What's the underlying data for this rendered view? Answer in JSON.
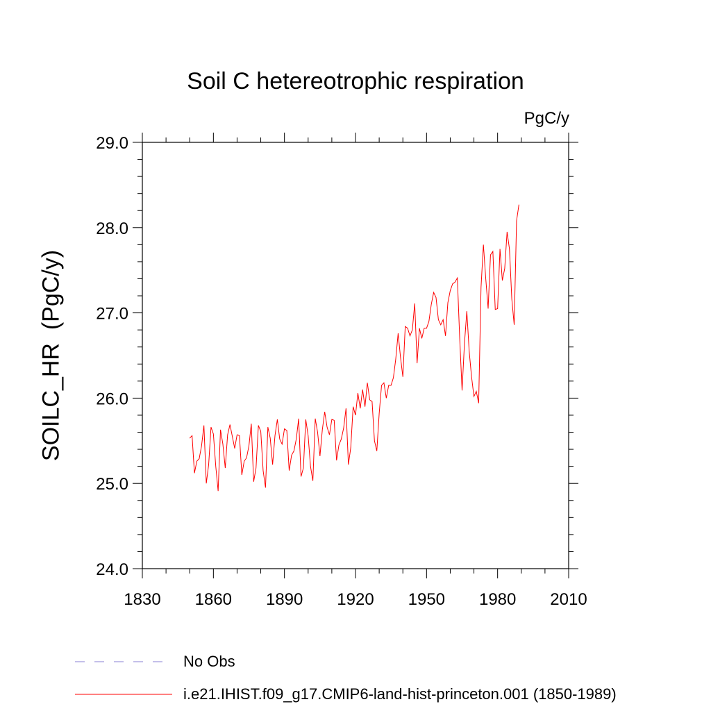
{
  "chart_data": {
    "type": "line",
    "title": "Soil C hetereotrophic respiration",
    "units": "PgC/y",
    "ylabel": "SOILC_HR  (PgC/y)",
    "xlabel": "",
    "xlim": [
      1830,
      2010
    ],
    "ylim": [
      24.0,
      29.0
    ],
    "x_ticks": [
      1830,
      1860,
      1890,
      1920,
      1950,
      1980,
      2010
    ],
    "x_tick_labels": [
      "1830",
      "1860",
      "1890",
      "1920",
      "1950",
      "1980",
      "2010"
    ],
    "y_ticks": [
      24.0,
      25.0,
      26.0,
      27.0,
      28.0,
      29.0
    ],
    "y_tick_labels": [
      "24.0",
      "25.0",
      "26.0",
      "27.0",
      "28.0",
      "29.0"
    ],
    "grid": false,
    "legend_position": "bottom",
    "series": [
      {
        "name": "i.e21.IHIST.f09_g17.CMIP6-land-hist-princeton.001 (1850-1989)",
        "color": "#ff0000",
        "style": "solid",
        "x_start": 1850,
        "values": [
          25.53,
          25.56,
          25.12,
          25.26,
          25.29,
          25.44,
          25.68,
          25.0,
          25.22,
          25.66,
          25.58,
          25.2,
          24.91,
          25.63,
          25.46,
          25.18,
          25.57,
          25.69,
          25.55,
          25.41,
          25.57,
          25.56,
          25.1,
          25.26,
          25.3,
          25.44,
          25.7,
          25.02,
          25.18,
          25.68,
          25.61,
          25.15,
          24.95,
          25.66,
          25.53,
          25.22,
          25.56,
          25.75,
          25.52,
          25.46,
          25.64,
          25.62,
          25.15,
          25.33,
          25.38,
          25.52,
          25.76,
          25.08,
          25.18,
          25.75,
          25.56,
          25.2,
          25.03,
          25.76,
          25.6,
          25.32,
          25.63,
          25.84,
          25.66,
          25.57,
          25.75,
          25.74,
          25.27,
          25.45,
          25.52,
          25.65,
          25.88,
          25.22,
          25.42,
          25.9,
          25.8,
          26.06,
          25.88,
          26.1,
          25.9,
          26.18,
          25.98,
          25.96,
          25.5,
          25.38,
          25.82,
          26.15,
          26.18,
          26.0,
          26.15,
          26.15,
          26.24,
          26.46,
          26.76,
          26.48,
          26.25,
          26.84,
          26.82,
          26.73,
          26.8,
          27.11,
          26.41,
          26.82,
          26.7,
          26.82,
          26.82,
          26.9,
          27.1,
          27.24,
          27.18,
          26.92,
          26.86,
          26.92,
          26.73,
          27.12,
          27.26,
          27.34,
          27.36,
          27.41,
          26.7,
          26.09,
          26.64,
          27.02,
          26.55,
          26.25,
          26.02,
          26.08,
          25.94,
          27.3,
          27.8,
          27.4,
          27.05,
          27.68,
          27.72,
          27.04,
          27.05,
          27.75,
          27.38,
          27.52,
          27.95,
          27.75,
          27.16,
          26.86,
          28.08,
          28.27
        ]
      },
      {
        "name": "No Obs",
        "color": "#8a7fd6",
        "style": "dashed",
        "values": []
      }
    ]
  }
}
